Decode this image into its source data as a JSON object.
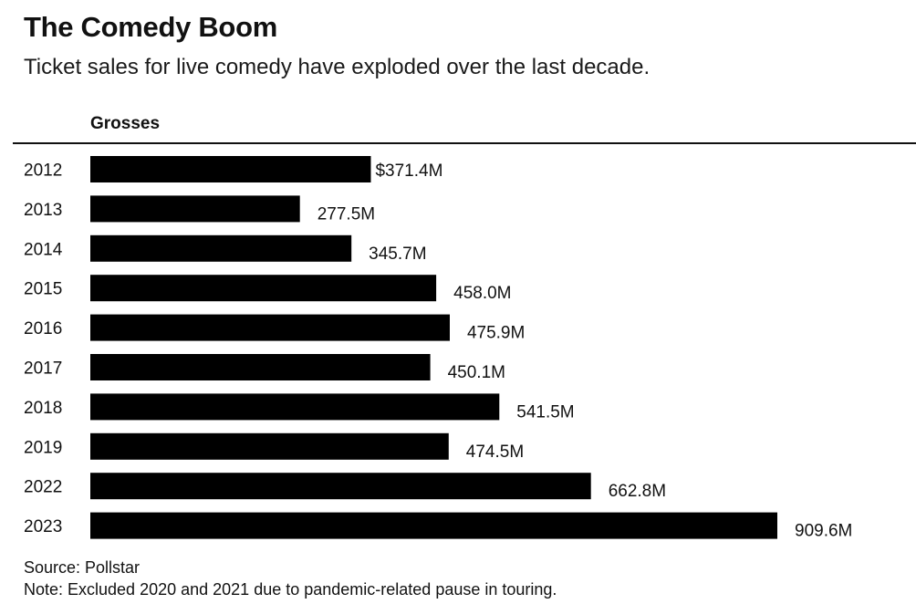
{
  "header": {
    "title": "The Comedy Boom",
    "subtitle": "Ticket sales for live comedy have exploded over the last decade."
  },
  "chart_data": {
    "type": "bar",
    "orientation": "horizontal",
    "title": "The Comedy Boom",
    "subtitle": "Ticket sales for live comedy have exploded over the last decade.",
    "series_label": "Grosses",
    "unit": "USD millions",
    "categories": [
      "2012",
      "2013",
      "2014",
      "2015",
      "2016",
      "2017",
      "2018",
      "2019",
      "2022",
      "2023"
    ],
    "values": [
      371.4,
      277.5,
      345.7,
      458.0,
      475.9,
      450.1,
      541.5,
      474.5,
      662.8,
      909.6
    ],
    "value_labels": [
      "$371.4M",
      "277.5M",
      "345.7M",
      "458.0M",
      "475.9M",
      "450.1M",
      "541.5M",
      "474.5M",
      "662.8M",
      "909.6M"
    ],
    "xlim": [
      0,
      909.6
    ],
    "grid": false,
    "bar_color": "#000000"
  },
  "footer": {
    "source": "Source: Pollstar",
    "note": "Note: Excluded 2020 and 2021 due to pandemic-related pause in touring."
  }
}
